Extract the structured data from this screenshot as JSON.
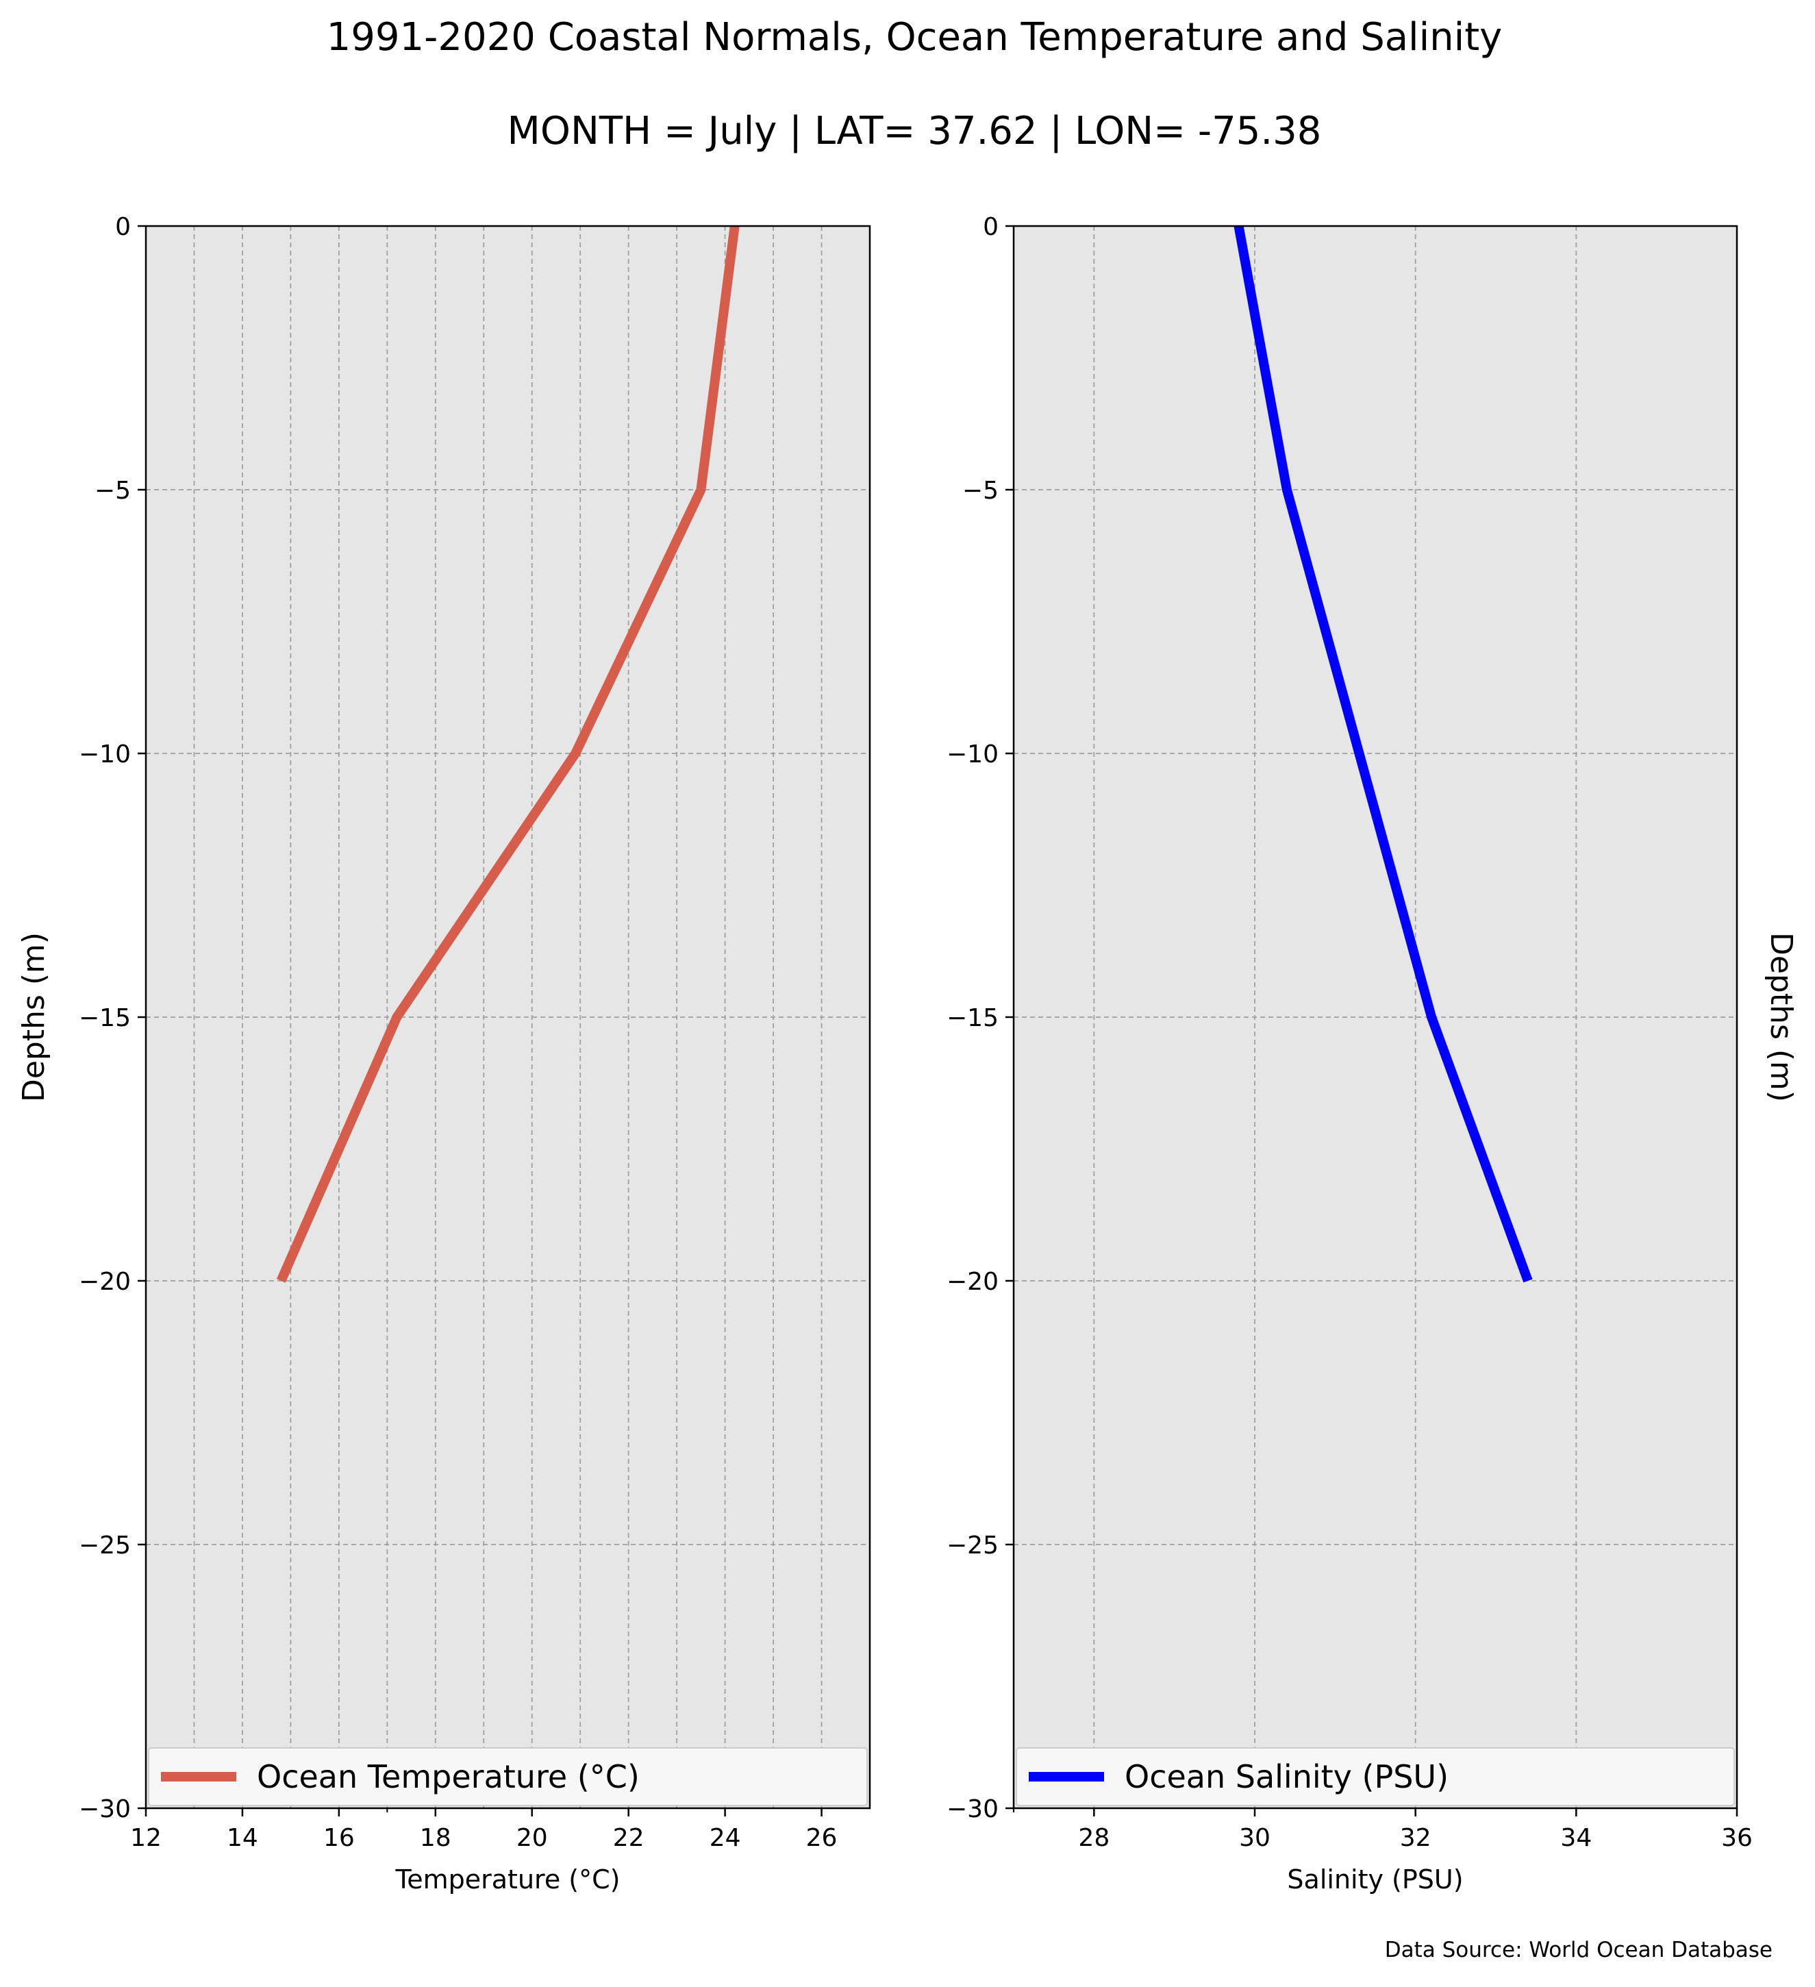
{
  "title": "1991-2020 Coastal Normals, Ocean Temperature and Salinity",
  "subtitle": "MONTH = July | LAT= 37.62 | LON= -75.38",
  "source": "Data Source: World Ocean Database",
  "colors": {
    "temperature": "#d65d4b",
    "salinity": "#0000ff",
    "panel_bg": "#e6e6e6",
    "grid": "#a0a0a0"
  },
  "chart_data": [
    {
      "type": "line",
      "xlabel": "Temperature ($^\\circ$C)",
      "xlabel_display": "Temperature (°C)",
      "ylabel": "Depths (m)",
      "xlim": [
        12,
        27
      ],
      "ylim": [
        -30,
        0
      ],
      "xticks": [
        "12",
        "14",
        "16",
        "18",
        "20",
        "22",
        "24",
        "26"
      ],
      "xtick_values": [
        12,
        14,
        16,
        18,
        20,
        22,
        24,
        26
      ],
      "yticks": [
        "0",
        "−5",
        "−10",
        "−15",
        "−20",
        "−25",
        "−30"
      ],
      "ytick_values": [
        0,
        -5,
        -10,
        -15,
        -20,
        -25,
        -30
      ],
      "grid": true,
      "legend": "lower-center",
      "series": [
        {
          "name": "Ocean Temperature (°C)",
          "x": [
            24.2,
            23.5,
            20.9,
            17.2,
            14.8
          ],
          "y": [
            0,
            -5,
            -10,
            -15,
            -20
          ]
        }
      ]
    },
    {
      "type": "line",
      "xlabel": "Salinity (PSU)",
      "ylabel": "Depths (m)",
      "xlim": [
        27,
        36
      ],
      "ylim": [
        -30,
        0
      ],
      "xticks": [
        "28",
        "30",
        "32",
        "34",
        "36"
      ],
      "xtick_values": [
        28,
        30,
        32,
        34,
        36
      ],
      "yticks": [
        "0",
        "−5",
        "−10",
        "−15",
        "−20",
        "−25",
        "−30"
      ],
      "ytick_values": [
        0,
        -5,
        -10,
        -15,
        -20,
        -25,
        -30
      ],
      "grid": true,
      "legend": "lower-center",
      "series": [
        {
          "name": "Ocean Salinity (PSU)",
          "x": [
            29.8,
            30.4,
            31.3,
            32.2,
            33.4
          ],
          "y": [
            0,
            -5,
            -10,
            -15,
            -20
          ]
        }
      ]
    }
  ]
}
